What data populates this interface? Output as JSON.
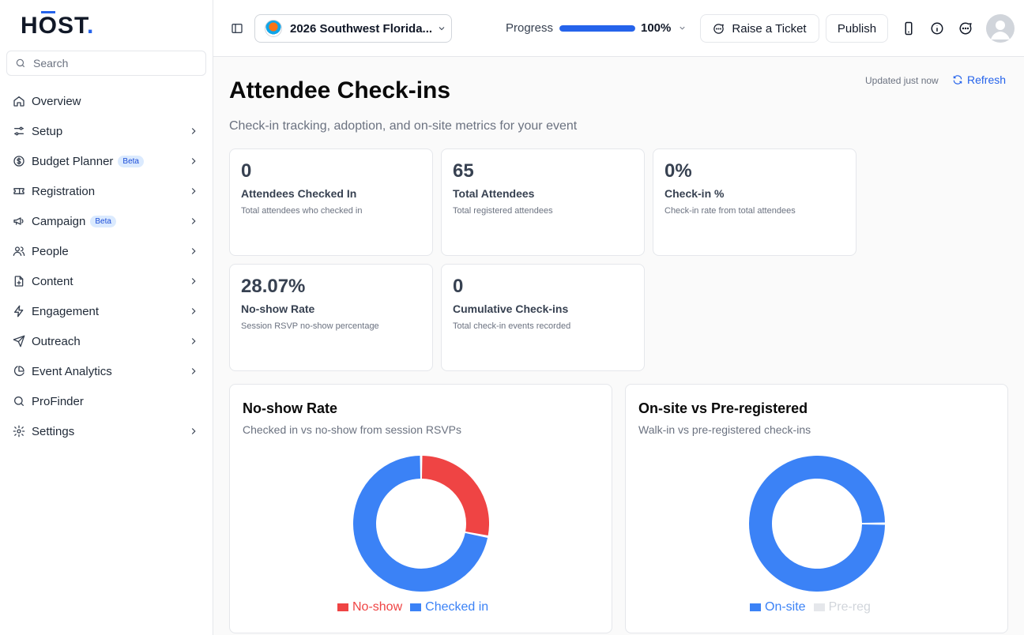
{
  "brand": {
    "logo": "HŌST",
    "logo_dot": ".",
    "accent": "#2563eb"
  },
  "sidebar": {
    "search_placeholder": "Search",
    "items": [
      {
        "label": "Overview",
        "icon": "home-icon",
        "chevron": false
      },
      {
        "label": "Setup",
        "icon": "sliders-icon",
        "chevron": true
      },
      {
        "label": "Budget Planner",
        "icon": "dollar-circle-icon",
        "chevron": true,
        "badge": "Beta"
      },
      {
        "label": "Registration",
        "icon": "ticket-icon",
        "chevron": true
      },
      {
        "label": "Campaign",
        "icon": "megaphone-icon",
        "chevron": true,
        "badge": "Beta"
      },
      {
        "label": "People",
        "icon": "users-icon",
        "chevron": true
      },
      {
        "label": "Content",
        "icon": "file-plus-icon",
        "chevron": true
      },
      {
        "label": "Engagement",
        "icon": "lightning-icon",
        "chevron": true
      },
      {
        "label": "Outreach",
        "icon": "send-icon",
        "chevron": true
      },
      {
        "label": "Event Analytics",
        "icon": "pie-chart-icon",
        "chevron": true
      },
      {
        "label": "ProFinder",
        "icon": "search-icon",
        "chevron": false
      },
      {
        "label": "Settings",
        "icon": "gear-icon",
        "chevron": true
      }
    ]
  },
  "topbar": {
    "event_name": "2026 Southwest Florida...",
    "progress_label": "Progress",
    "progress_value": 100,
    "progress_text": "100%",
    "raise_ticket": "Raise a Ticket",
    "publish": "Publish"
  },
  "main": {
    "title": "Attendee Check-ins",
    "subtitle": "Check-in tracking, adoption, and on-site metrics for your event",
    "updated": "Updated just now",
    "refresh": "Refresh",
    "stats": [
      {
        "value": "0",
        "label": "Attendees Checked In",
        "desc": "Total attendees who checked in"
      },
      {
        "value": "65",
        "label": "Total Attendees",
        "desc": "Total registered attendees"
      },
      {
        "value": "0%",
        "label": "Check-in %",
        "desc": "Check-in rate from total attendees"
      },
      {
        "value": "28.07%",
        "label": "No-show Rate",
        "desc": "Session RSVP no-show percentage"
      },
      {
        "value": "0",
        "label": "Cumulative Check-ins",
        "desc": "Total check-in events recorded"
      }
    ]
  },
  "chart_data": [
    {
      "type": "pie",
      "title": "No-show Rate",
      "subtitle": "Checked in vs no-show from session RSVPs",
      "donut": true,
      "series": [
        {
          "name": "No-show",
          "value": 28.07,
          "color": "#ef4444"
        },
        {
          "name": "Checked in",
          "value": 71.93,
          "color": "#3b82f6"
        }
      ]
    },
    {
      "type": "pie",
      "title": "On-site vs Pre-registered",
      "subtitle": "Walk-in vs pre-registered check-ins",
      "donut": true,
      "series": [
        {
          "name": "On-site",
          "value": 100,
          "color": "#3b82f6"
        },
        {
          "name": "Pre-reg",
          "value": 0,
          "color": "#e5e7eb"
        }
      ]
    }
  ]
}
